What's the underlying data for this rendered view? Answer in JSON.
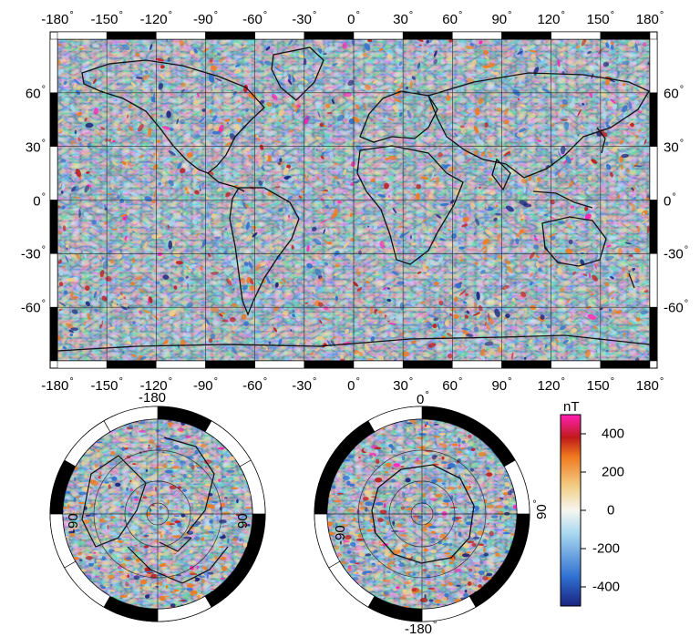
{
  "colors": {
    "positive_strong": "#c01a1a",
    "positive_mid": "#f07a1f",
    "positive_weak": "#f2d08a",
    "neutral": "#f6f6f0",
    "negative_weak": "#a9d8f0",
    "negative_mid": "#2f6fd0",
    "negative_strong": "#1a237e",
    "extreme_positive": "#ff1fb4",
    "coastline": "#111111",
    "frame_black": "#000000"
  },
  "main_map": {
    "projection": "equirectangular",
    "lon_ticks_top": [
      "-180",
      "-150",
      "-120",
      "-90",
      "-60",
      "-30",
      "0",
      "30",
      "60",
      "90",
      "120",
      "150",
      "180"
    ],
    "lon_ticks_bottom": [
      "-180",
      "-150",
      "-120",
      "-90",
      "-60",
      "-30",
      "0",
      "30",
      "60",
      "90",
      "120",
      "150",
      "180"
    ],
    "lat_ticks_left": [
      "60",
      "30",
      "0",
      "-30",
      "-60"
    ],
    "lat_ticks_right": [
      "60",
      "30",
      "0",
      "-30",
      "-60"
    ],
    "degree_symbol": "°"
  },
  "north_polar": {
    "labels": {
      "top": "-180",
      "left": "-90",
      "right": "90"
    }
  },
  "south_polar": {
    "labels": {
      "top": "0",
      "left": "-90",
      "right": "90",
      "bottom": "-180"
    }
  },
  "colorbar": {
    "unit": "nT",
    "ticks": [
      "400",
      "200",
      "0",
      "-200",
      "-400"
    ],
    "range": [
      -500,
      500
    ]
  }
}
